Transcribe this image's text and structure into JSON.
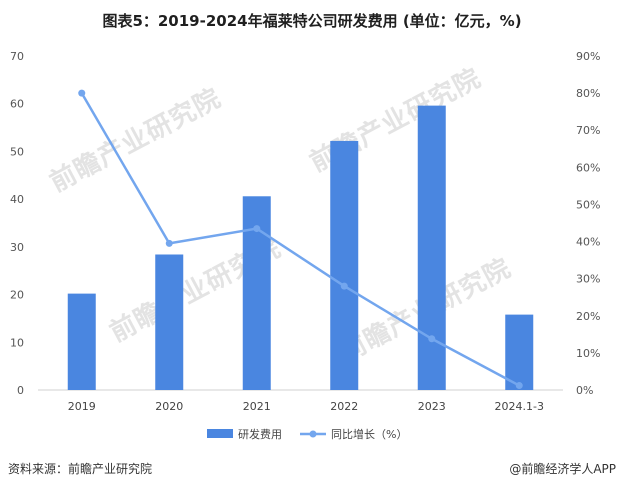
{
  "title": "图表5：2019-2024年福莱特公司研发费用 (单位：亿元，%)",
  "footer": {
    "source": "资料来源：前瞻产业研究院",
    "brand": "@前瞻经济学人APP"
  },
  "watermark": "前瞻产业研究院",
  "colors": {
    "bar": "#4a86e0",
    "line": "#73a6ee",
    "grid": "#e6e6e6"
  },
  "chart_data": {
    "type": "bar+line",
    "categories": [
      "2019",
      "2020",
      "2021",
      "2022",
      "2023",
      "2024.1-3"
    ],
    "series": [
      {
        "name": "研发费用",
        "type": "bar",
        "axis": "left",
        "values": [
          20.2,
          28.4,
          40.6,
          52.2,
          59.6,
          15.8
        ]
      },
      {
        "name": "同比增长（%）",
        "type": "line",
        "axis": "right",
        "values": [
          80,
          39.5,
          43.5,
          28,
          13.8,
          1.2
        ]
      }
    ],
    "y_left": {
      "min": 0,
      "max": 70,
      "ticks": [
        "0",
        "10",
        "20",
        "30",
        "40",
        "50",
        "60",
        "70"
      ]
    },
    "y_right": {
      "min": 0,
      "max": 90,
      "ticks": [
        "0%",
        "10%",
        "20%",
        "30%",
        "40%",
        "50%",
        "60%",
        "70%",
        "80%",
        "90%"
      ]
    },
    "legend_position": "bottom",
    "grid": false
  }
}
